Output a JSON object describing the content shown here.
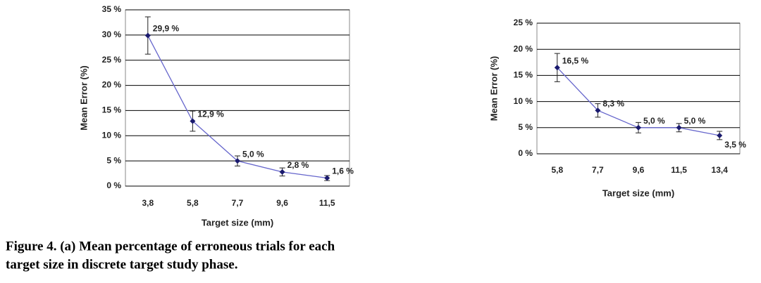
{
  "chart_data": [
    {
      "type": "line",
      "xlabel": "Target size (mm)",
      "ylabel": "Mean Error (%)",
      "categories": [
        "3,8",
        "5,8",
        "7,7",
        "9,6",
        "11,5"
      ],
      "series": [
        {
          "color": "#6666cc",
          "marker_color": "#1a1a6e",
          "values": [
            29.9,
            12.9,
            5.0,
            2.8,
            1.6
          ],
          "value_labels": [
            "29,9 %",
            "12,9 %",
            "5,0 %",
            "2,8 %",
            "1,6 %"
          ],
          "errors": [
            3.7,
            2.0,
            1.0,
            0.8,
            0.5
          ]
        }
      ],
      "ylim": [
        0,
        35
      ],
      "yticks": [
        {
          "value": 0,
          "label": "0 %"
        },
        {
          "value": 5,
          "label": "5 %"
        },
        {
          "value": 10,
          "label": "10 %"
        },
        {
          "value": 15,
          "label": "15 %"
        },
        {
          "value": 20,
          "label": "20 %"
        },
        {
          "value": 25,
          "label": "25 %"
        },
        {
          "value": 30,
          "label": "30 %"
        },
        {
          "value": 35,
          "label": "35 %"
        }
      ],
      "grid": true
    },
    {
      "type": "line",
      "xlabel": "Target size (mm)",
      "ylabel": "Mean Error (%)",
      "categories": [
        "5,8",
        "7,7",
        "9,6",
        "11,5",
        "13,4"
      ],
      "series": [
        {
          "color": "#6666cc",
          "marker_color": "#1a1a6e",
          "values": [
            16.5,
            8.3,
            5.0,
            5.0,
            3.5
          ],
          "value_labels": [
            "16,5 %",
            "8,3 %",
            "5,0 %",
            "5,0 %",
            "3,5 %"
          ],
          "errors": [
            2.7,
            1.3,
            1.0,
            0.8,
            0.8
          ]
        }
      ],
      "ylim": [
        0,
        25
      ],
      "yticks": [
        {
          "value": 0,
          "label": "0 %"
        },
        {
          "value": 5,
          "label": "5 %"
        },
        {
          "value": 10,
          "label": "10 %"
        },
        {
          "value": 15,
          "label": "15 %"
        },
        {
          "value": 20,
          "label": "20 %"
        },
        {
          "value": 25,
          "label": "25 %"
        }
      ],
      "grid": true
    }
  ],
  "caption": [
    "Figure 4. (a) Mean percentage of erroneous trials for each",
    "target size in discrete target study phase."
  ]
}
